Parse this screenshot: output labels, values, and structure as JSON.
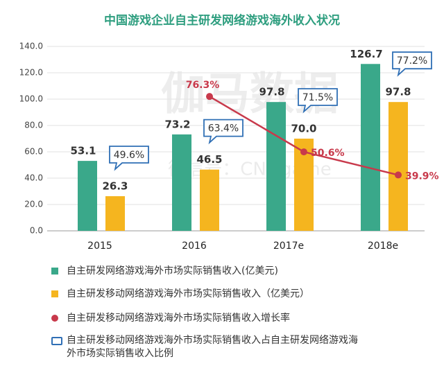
{
  "chart_data": {
    "type": "bar",
    "title": "中国游戏企业自主研发网络游戏海外收入状况",
    "watermark": [
      "伽马数据",
      "微信号：CNGgame"
    ],
    "categories": [
      "2015",
      "2016",
      "2017e",
      "2018e"
    ],
    "series": [
      {
        "name": "自主研发网络游戏海外市场实际销售收入(亿美元)",
        "type": "bar",
        "color": "#3aa88a",
        "values": [
          53.1,
          73.2,
          97.8,
          126.7
        ]
      },
      {
        "name": "自主研发移动网络游戏海外市场实际销售收入（亿美元）",
        "type": "bar",
        "color": "#f5b51f",
        "values": [
          26.3,
          46.5,
          70,
          97.8
        ],
        "value_labels": [
          "26.3",
          "46.5",
          "70.0",
          "97.8"
        ]
      },
      {
        "name": "自主研发移动网络游戏海外市场实际销售收入增长率",
        "type": "line",
        "axis": "y2",
        "color": "#c8394b",
        "values": [
          null,
          76.3,
          50.6,
          39.9
        ],
        "value_labels": [
          null,
          "76.3%",
          "50.6%",
          "39.9%"
        ]
      },
      {
        "name": "自主研发移动网络游戏海外市场实际销售收入占自主研发网络游戏海外市场实际销售收入比例",
        "type": "callout",
        "color": "#2f6fb5",
        "values": [
          49.6,
          63.4,
          71.5,
          77.2
        ],
        "value_labels": [
          "49.6%",
          "63.4%",
          "71.5%",
          "77.2%"
        ]
      }
    ],
    "ylim": [
      0,
      140
    ],
    "yticks": [
      {
        "value": 0,
        "label": "0.0"
      },
      {
        "value": 20,
        "label": "20.0"
      },
      {
        "value": 40,
        "label": "40.0"
      },
      {
        "value": 60,
        "label": "60.0"
      },
      {
        "value": 80,
        "label": "80.0"
      },
      {
        "value": 100,
        "label": "100.0"
      },
      {
        "value": 120,
        "label": "120.0"
      },
      {
        "value": 140,
        "label": "140.0"
      }
    ],
    "y2lim": [
      14,
      99.5
    ],
    "grid": true
  }
}
